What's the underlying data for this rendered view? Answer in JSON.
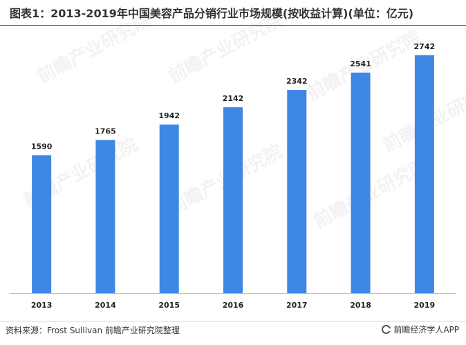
{
  "title": "图表1：2013-2019年中国美容产品分销行业市场规模(按收益计算)(单位：亿元)",
  "watermark": "前瞻产业研究院",
  "footer": {
    "source": "资料来源：Frost Sullivan 前瞻产业研究院整理",
    "brand": "前瞻经济学人APP"
  },
  "colors": {
    "bar": "#3f87e5",
    "axis": "#bfbfbf",
    "label": "#222222"
  },
  "chart_data": {
    "type": "bar",
    "title": "图表1：2013-2019年中国美容产品分销行业市场规模(按收益计算)(单位：亿元)",
    "categories": [
      "2013",
      "2014",
      "2015",
      "2016",
      "2017",
      "2018",
      "2019"
    ],
    "values": [
      1590,
      1765,
      1942,
      2142,
      2342,
      2541,
      2742
    ],
    "ylim": [
      0,
      2900
    ],
    "grid": false,
    "legend": "none",
    "data_labels": true
  }
}
